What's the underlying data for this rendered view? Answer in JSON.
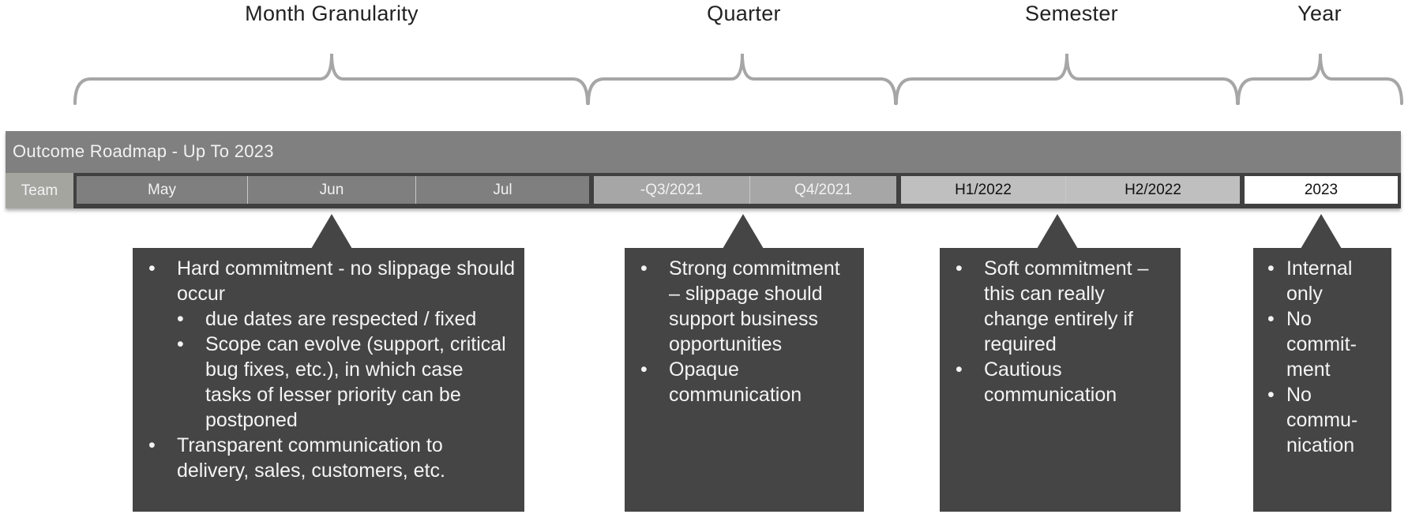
{
  "groups": [
    {
      "title": "Month Granularity"
    },
    {
      "title": "Quarter"
    },
    {
      "title": "Semester"
    },
    {
      "title": "Year"
    }
  ],
  "header": {
    "title": "Outcome Roadmap - Up To 2023"
  },
  "row": {
    "team_label": "Team",
    "months": [
      "May",
      "Jun",
      "Jul"
    ],
    "quarters": [
      "-Q3/2021",
      "Q4/2021"
    ],
    "semesters": [
      "H1/2022",
      "H2/2022"
    ],
    "year": "2023"
  },
  "callouts": {
    "month": [
      "Hard commitment - no slippage should occur",
      "due dates are respected / fixed",
      "Scope can evolve (support, critical bug fixes, etc.), in which case  tasks of lesser priority can be postponed",
      "Transparent communication to delivery, sales, customers, etc."
    ],
    "quarter": [
      "Strong commitment – slippage should support business opportunities",
      "Opaque communication"
    ],
    "semester": [
      "Soft commitment – this can really change entirely if required",
      "Cautious communication"
    ],
    "year": [
      "Internal only",
      "No commit­ment",
      "No commu­nication"
    ]
  },
  "colors": {
    "header": "#808080",
    "month_cell": "#7f7f7f",
    "quarter_cell": "#a6a6a6",
    "semester_cell": "#bfbfbf",
    "year_cell": "#ffffff",
    "callout": "#454545",
    "brace": "#a6a6a6"
  }
}
